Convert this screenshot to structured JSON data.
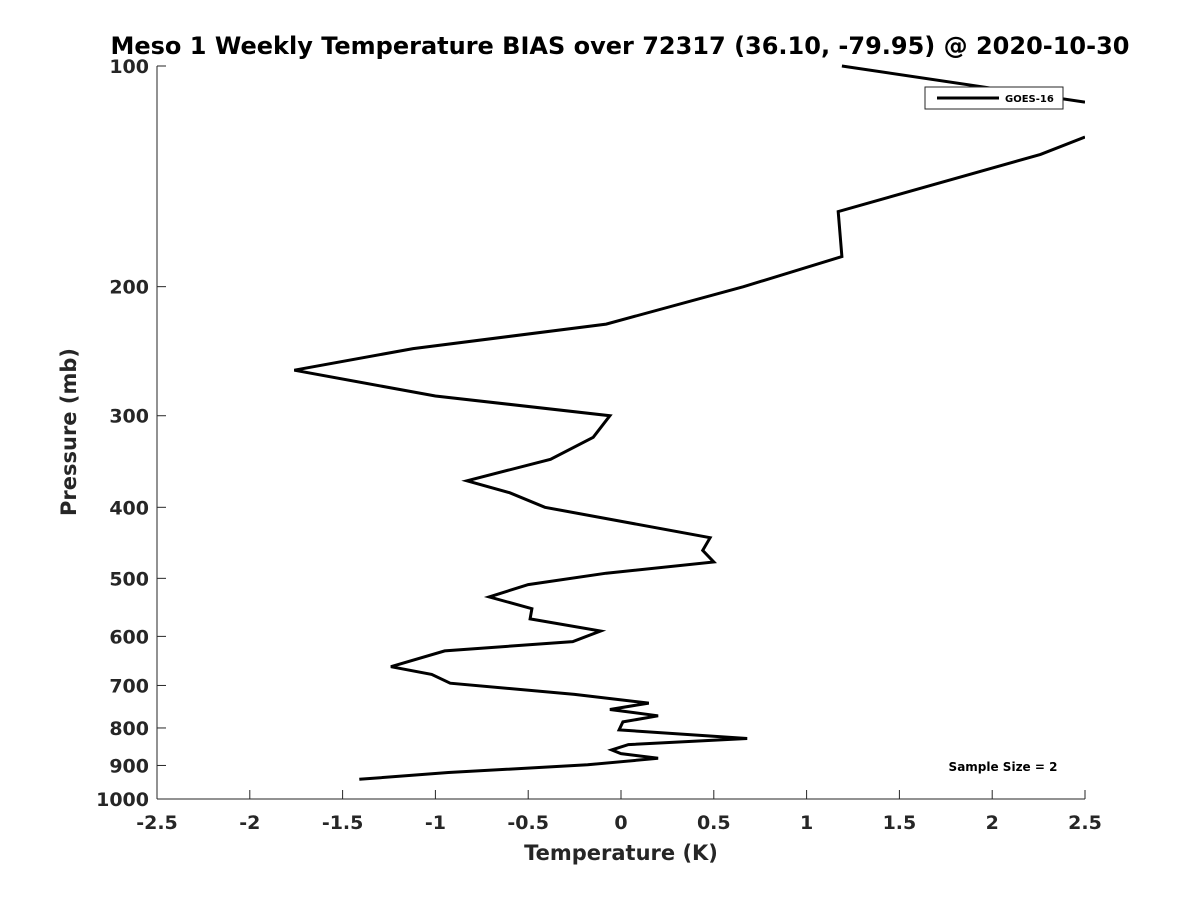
{
  "chart_data": {
    "type": "line",
    "title": "Meso 1 Weekly Temperature BIAS over 72317 (36.10, -79.95) @ 2020-10-30",
    "xlabel": "Temperature (K)",
    "ylabel": "Pressure (mb)",
    "xlim": [
      -2.5,
      2.5
    ],
    "ylim": [
      1000,
      100
    ],
    "y_scale": "log",
    "y_reversed": true,
    "grid": false,
    "legend_position": "top-right",
    "x_ticks": [
      -2.5,
      -2,
      -1.5,
      -1,
      -0.5,
      0,
      0.5,
      1,
      1.5,
      2,
      2.5
    ],
    "x_tick_labels": [
      "-2.5",
      "-2",
      "-1.5",
      "-1",
      "-0.5",
      "0",
      "0.5",
      "1",
      "1.5",
      "2",
      "2.5"
    ],
    "y_ticks": [
      100,
      200,
      300,
      400,
      500,
      600,
      700,
      800,
      900,
      1000
    ],
    "y_tick_labels": [
      "100",
      "200",
      "300",
      "400",
      "500",
      "600",
      "700",
      "800",
      "900",
      "1000"
    ],
    "annotation": "Sample Size = 2",
    "series": [
      {
        "name": "GOES-16",
        "color": "#000000",
        "points": [
          [
            1.19,
            100
          ],
          [
            2.5,
            112
          ],
          null,
          [
            2.5,
            125
          ],
          [
            2.26,
            132
          ],
          [
            1.17,
            158
          ],
          [
            1.19,
            182
          ],
          [
            0.66,
            200
          ],
          [
            -0.08,
            225
          ],
          [
            -1.12,
            243
          ],
          [
            -1.76,
            260
          ],
          [
            -1.0,
            282
          ],
          [
            -0.06,
            300
          ],
          [
            -0.15,
            321
          ],
          [
            -0.38,
            344
          ],
          [
            -0.83,
            368
          ],
          [
            -0.6,
            382
          ],
          [
            -0.41,
            400
          ],
          [
            0.48,
            440
          ],
          [
            0.44,
            458
          ],
          [
            0.5,
            475
          ],
          [
            -0.08,
            492
          ],
          [
            -0.5,
            510
          ],
          [
            -0.71,
            530
          ],
          [
            -0.48,
            550
          ],
          [
            -0.49,
            568
          ],
          [
            -0.11,
            590
          ],
          [
            -0.26,
            610
          ],
          [
            -0.95,
            628
          ],
          [
            -1.24,
            660
          ],
          [
            -1.02,
            676
          ],
          [
            -0.92,
            695
          ],
          [
            -0.25,
            720
          ],
          [
            0.15,
            740
          ],
          [
            -0.06,
            755
          ],
          [
            0.2,
            770
          ],
          [
            0.01,
            785
          ],
          [
            -0.01,
            805
          ],
          [
            0.68,
            827
          ],
          [
            0.04,
            843
          ],
          [
            -0.05,
            857
          ],
          [
            0.0,
            867
          ],
          [
            0.2,
            880
          ],
          [
            -0.18,
            898
          ],
          [
            -0.93,
            920
          ],
          [
            -1.41,
            940
          ]
        ]
      }
    ]
  }
}
